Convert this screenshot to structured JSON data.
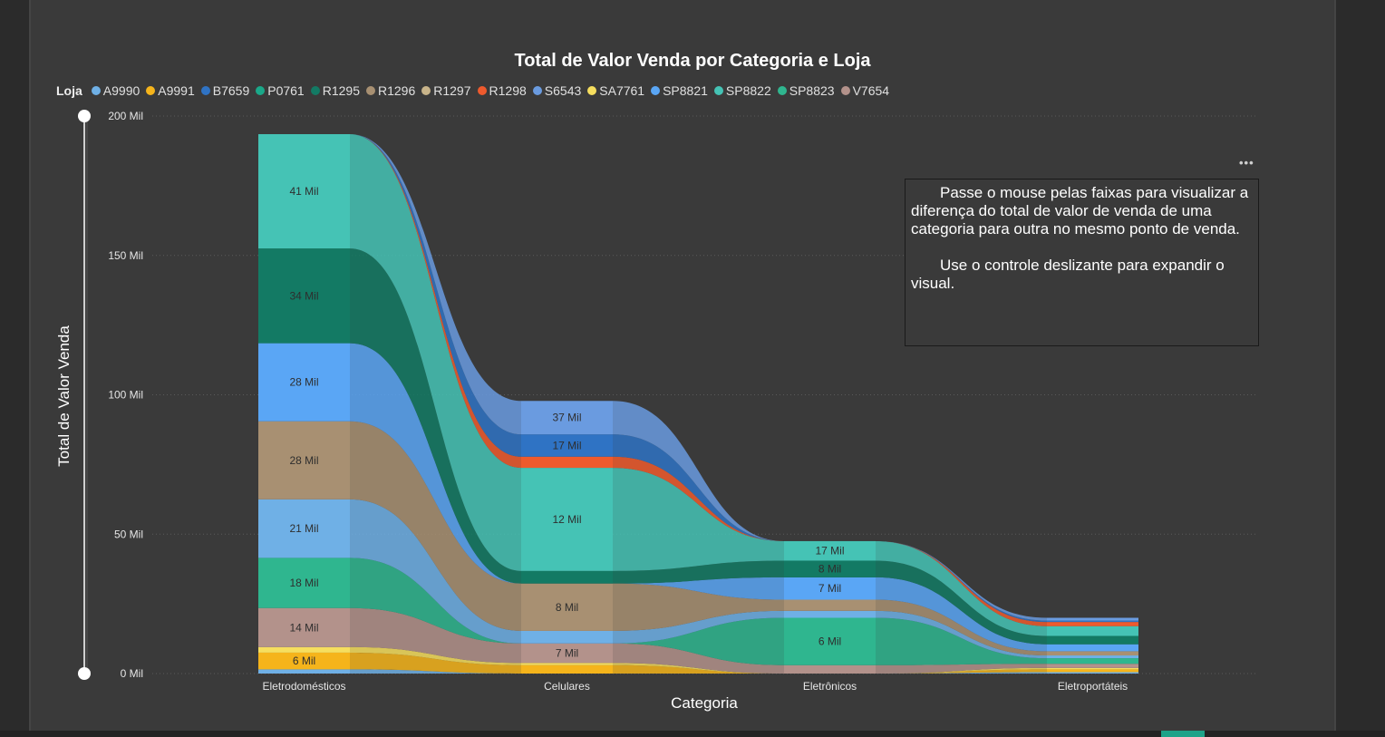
{
  "title": "Total de Valor Venda por Categoria e Loja",
  "legend": {
    "title": "Loja",
    "items": [
      {
        "name": "A9990",
        "color": "#6fb0e6"
      },
      {
        "name": "A9991",
        "color": "#f5b41b"
      },
      {
        "name": "B7659",
        "color": "#2f73c4"
      },
      {
        "name": "P0761",
        "color": "#1aa889"
      },
      {
        "name": "R1295",
        "color": "#137a64"
      },
      {
        "name": "R1296",
        "color": "#a89072"
      },
      {
        "name": "R1297",
        "color": "#c8b48a"
      },
      {
        "name": "R1298",
        "color": "#ee5a2d"
      },
      {
        "name": "S6543",
        "color": "#6a9be0"
      },
      {
        "name": "SA7761",
        "color": "#f6de5e"
      },
      {
        "name": "SP8821",
        "color": "#5aa6f5"
      },
      {
        "name": "SP8822",
        "color": "#45c3b5"
      },
      {
        "name": "SP8823",
        "color": "#2fb68f"
      },
      {
        "name": "V7654",
        "color": "#b3928b"
      }
    ]
  },
  "info_box": {
    "paragraph1": "Passe o mouse pelas faixas para visualizar a diferença do total de valor de venda de uma categoria para outra no mesmo ponto de venda.",
    "paragraph2": "Use o controle deslizante para expandir o visual."
  },
  "more_options": "•••",
  "chart_data": {
    "type": "bar",
    "title": "Total de Valor Venda por Categoria e Loja",
    "xlabel": "Categoria",
    "ylabel": "Total de Valor Venda",
    "ylim": [
      0,
      200000
    ],
    "y_ticks": [
      "0 Mil",
      "50 Mil",
      "100 Mil",
      "150 Mil",
      "200 Mil"
    ],
    "y_tick_values": [
      0,
      50000,
      100000,
      150000,
      200000
    ],
    "categories": [
      "Eletrodomésticos",
      "Celulares",
      "Eletrônicos",
      "Eletroportáteis"
    ],
    "grid": true,
    "legend_position": "top-left",
    "stacked": true,
    "ribbons": true,
    "series": [
      {
        "name": "A9990",
        "values": [
          1500,
          0,
          0,
          500
        ]
      },
      {
        "name": "A9991",
        "values": [
          6000,
          3000,
          0,
          1000
        ]
      },
      {
        "name": "SA7761",
        "values": [
          2000,
          800,
          0,
          500
        ]
      },
      {
        "name": "V7654",
        "values": [
          14000,
          7000,
          3000,
          1500
        ]
      },
      {
        "name": "SP8823",
        "values": [
          18000,
          0,
          17000,
          2000
        ]
      },
      {
        "name": "A9990",
        "values": [
          21000,
          4500,
          2500,
          1000
        ]
      },
      {
        "name": "R1296",
        "values": [
          28000,
          17000,
          4000,
          1500
        ]
      },
      {
        "name": "SP8821",
        "values": [
          28000,
          0,
          8000,
          2500
        ]
      },
      {
        "name": "R1295",
        "values": [
          34000,
          4500,
          6000,
          3000
        ]
      },
      {
        "name": "SP8822",
        "values": [
          41000,
          37000,
          7000,
          3500
        ]
      },
      {
        "name": "R1298",
        "values": [
          0,
          4000,
          0,
          1500
        ]
      },
      {
        "name": "B7659",
        "values": [
          0,
          8000,
          0,
          500
        ]
      },
      {
        "name": "S6543",
        "values": [
          0,
          12000,
          0,
          1000
        ]
      }
    ],
    "data_labels": [
      [
        "6 Mil",
        "14 Mil",
        "18 Mil",
        "21 Mil",
        "28 Mil",
        "28 Mil",
        "34 Mil",
        "41 Mil"
      ],
      [
        "7 Mil",
        "8 Mil",
        "12 Mil",
        "17 Mil",
        "37 Mil"
      ],
      [
        "6 Mil",
        "7 Mil",
        "8 Mil",
        "17 Mil"
      ]
    ]
  }
}
